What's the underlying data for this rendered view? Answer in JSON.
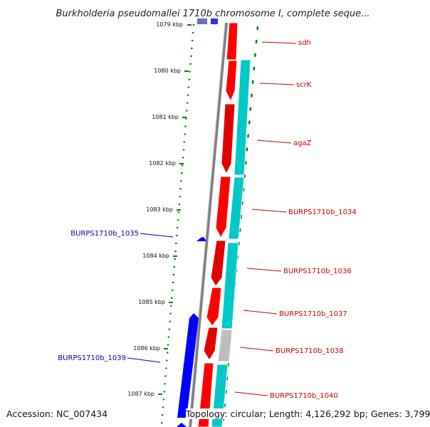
{
  "title": "Burkholderia pseudomallei 1710b chromosome I, complete seque...",
  "footer": {
    "accession": "Accession: NC_007434",
    "summary": "Topology: circular; Length: 4,126,292 bp; Genes: 3,799"
  },
  "ruler": {
    "unit": "kbp",
    "ticks": [
      "1079 kbp",
      "1080 kbp",
      "1081 kbp",
      "1082 kbp",
      "1083 kbp",
      "1084 kbp",
      "1085 kbp",
      "1086 kbp",
      "1087 kbp"
    ]
  },
  "colors": {
    "forward_cds": "#ff0000",
    "reverse_cds": "#0000ff",
    "rna_track": "#00c8c8",
    "pseudo_track": "#bbbbbb",
    "backbone": "#808080",
    "ruler_dots": "#008000",
    "label_forward": "#cc0000",
    "label_reverse": "#0000aa"
  },
  "genes": [
    {
      "name": "sdh",
      "strand": "forward"
    },
    {
      "name": "scrK",
      "strand": "forward"
    },
    {
      "name": "agaZ",
      "strand": "forward"
    },
    {
      "name": "BURPS1710b_1034",
      "strand": "forward"
    },
    {
      "name": "BURPS1710b_1035",
      "strand": "reverse"
    },
    {
      "name": "BURPS1710b_1036",
      "strand": "forward"
    },
    {
      "name": "BURPS1710b_1037",
      "strand": "forward"
    },
    {
      "name": "BURPS1710b_1038",
      "strand": "forward"
    },
    {
      "name": "BURPS1710b_1039",
      "strand": "reverse"
    },
    {
      "name": "BURPS1710b_1040",
      "strand": "forward"
    }
  ]
}
